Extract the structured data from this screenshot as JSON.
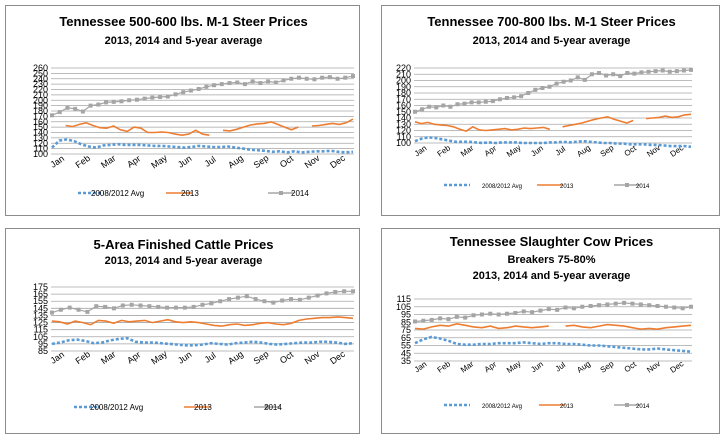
{
  "colors": {
    "avg": "#5b9bd5",
    "y2013": "#ed7d31",
    "y2014": "#a5a5a5",
    "grid": "#a6a6a6"
  },
  "chart_data": [
    {
      "type": "line",
      "title": "Tennessee 500-600 lbs. M-1 Steer Prices",
      "subtitle": "2013, 2014 and 5-year average",
      "xlabels": [
        "Jan",
        "Feb",
        "Mar",
        "Apr",
        "May",
        "Jun",
        "Jul",
        "Aug",
        "Sep",
        "Oct",
        "Nov",
        "Dec"
      ],
      "ylim": [
        100,
        260
      ],
      "yticks": [
        100,
        110,
        120,
        130,
        140,
        150,
        160,
        170,
        180,
        190,
        200,
        210,
        220,
        230,
        240,
        250,
        260
      ],
      "grid": true,
      "legend": "bottom",
      "series": [
        {
          "name": "2008/2012 Avg",
          "style": "dashed",
          "values": [
            112,
            125,
            127,
            124,
            118,
            114,
            112,
            116,
            117,
            118,
            117,
            117,
            117,
            116,
            115,
            115,
            114,
            113,
            112,
            113,
            115,
            114,
            113,
            113,
            114,
            112,
            110,
            108,
            107,
            106,
            104,
            105,
            103,
            105,
            103,
            104,
            105,
            105,
            106,
            104,
            103,
            104
          ]
        },
        {
          "name": "2013",
          "style": "solid",
          "values": [
            null,
            null,
            153,
            151,
            155,
            158,
            153,
            149,
            148,
            152,
            145,
            142,
            150,
            148,
            140,
            140,
            141,
            140,
            137,
            135,
            137,
            144,
            137,
            135,
            null,
            144,
            143,
            146,
            150,
            154,
            156,
            157,
            160,
            155,
            150,
            145,
            150,
            null,
            152,
            153,
            155,
            157,
            155,
            158,
            165
          ]
        },
        {
          "name": "2014",
          "style": "markers",
          "values": [
            172,
            178,
            186,
            184,
            179,
            190,
            192,
            196,
            197,
            198,
            200,
            201,
            203,
            205,
            206,
            207,
            211,
            215,
            218,
            221,
            225,
            228,
            230,
            232,
            233,
            230,
            235,
            232,
            235,
            233,
            237,
            240,
            242,
            240,
            239,
            242,
            243,
            240,
            242,
            245
          ]
        }
      ]
    },
    {
      "type": "line",
      "title": "Tennessee 700-800 lbs. M-1 Steer Prices",
      "subtitle": "2013, 2014 and 5-year average",
      "xlabels": [
        "Jan",
        "Feb",
        "Mar",
        "Apr",
        "May",
        "Jun",
        "Jul",
        "Aug",
        "Sep",
        "Oct",
        "Nov",
        "Dec"
      ],
      "ylim": [
        100,
        220
      ],
      "yticks": [
        100,
        110,
        120,
        130,
        140,
        150,
        160,
        170,
        180,
        190,
        200,
        210,
        220
      ],
      "grid": true,
      "legend": "bottom",
      "series": [
        {
          "name": "2008/2012 Avg",
          "style": "dashed",
          "values": [
            103,
            107,
            109,
            108,
            106,
            104,
            102,
            102,
            102,
            101,
            100,
            101,
            100,
            101,
            101,
            101,
            100,
            100,
            100,
            100,
            101,
            101,
            102,
            101,
            102,
            103,
            102,
            101,
            100,
            100,
            99,
            99,
            98,
            98,
            98,
            97,
            97,
            96,
            95,
            95,
            95,
            94
          ]
        },
        {
          "name": "2013",
          "style": "solid",
          "values": [
            134,
            131,
            133,
            130,
            129,
            128,
            126,
            122,
            119,
            126,
            121,
            120,
            121,
            122,
            123,
            121,
            122,
            124,
            123,
            124,
            125,
            122,
            null,
            126,
            128,
            130,
            132,
            135,
            138,
            140,
            142,
            138,
            135,
            132,
            136,
            null,
            139,
            140,
            141,
            143,
            141,
            142,
            145,
            146
          ]
        },
        {
          "name": "2014",
          "style": "markers",
          "values": [
            150,
            154,
            158,
            157,
            160,
            158,
            162,
            163,
            165,
            165,
            166,
            167,
            170,
            172,
            173,
            175,
            180,
            185,
            188,
            190,
            195,
            198,
            200,
            205,
            201,
            210,
            212,
            208,
            210,
            207,
            212,
            211,
            213,
            214,
            215,
            216,
            214,
            215,
            216,
            217
          ]
        }
      ]
    },
    {
      "type": "line",
      "title": "5-Area Finished Cattle Prices",
      "subtitle": "2013, 2014 and 5-year average",
      "xlabels": [
        "Jan",
        "Feb",
        "Mar",
        "Apr",
        "May",
        "Jun",
        "Jul",
        "Aug",
        "Sep",
        "Oct",
        "Nov",
        "Dec"
      ],
      "ylim": [
        85,
        175
      ],
      "yticks": [
        85,
        95,
        105,
        115,
        125,
        135,
        145,
        155,
        165,
        175
      ],
      "grid": true,
      "legend": "bottom",
      "series": [
        {
          "name": "2008/2012 Avg",
          "style": "dashed",
          "values": [
            95,
            97,
            100,
            101,
            99,
            96,
            97,
            100,
            102,
            103,
            98,
            97,
            97,
            96,
            95,
            94,
            93,
            93,
            94,
            96,
            95,
            94,
            96,
            97,
            98,
            97,
            95,
            94,
            95,
            96,
            97,
            97,
            98,
            98,
            97,
            95,
            96
          ]
        },
        {
          "name": "2013",
          "style": "solid",
          "values": [
            127,
            126,
            123,
            127,
            125,
            122,
            128,
            127,
            124,
            128,
            126,
            127,
            128,
            125,
            127,
            129,
            126,
            125,
            126,
            125,
            123,
            121,
            120,
            122,
            123,
            121,
            122,
            124,
            125,
            123,
            122,
            124,
            128,
            130,
            131,
            132,
            132,
            133,
            132,
            131
          ]
        },
        {
          "name": "2014",
          "style": "markers",
          "values": [
            139,
            143,
            146,
            143,
            140,
            148,
            147,
            145,
            149,
            150,
            149,
            148,
            147,
            146,
            146,
            146,
            147,
            150,
            152,
            155,
            158,
            160,
            162,
            158,
            155,
            153,
            156,
            158,
            157,
            160,
            163,
            166,
            168,
            169,
            169
          ]
        }
      ]
    },
    {
      "type": "line",
      "title": "Tennessee Slaughter Cow Prices",
      "subtitle": "Breakers 75-80%",
      "subtitle2": "2013, 2014 and 5-year average",
      "xlabels": [
        "Jan",
        "Feb",
        "Mar",
        "Apr",
        "May",
        "Jun",
        "Jul",
        "Aug",
        "Sep",
        "Oct",
        "Nov",
        "Dec"
      ],
      "ylim": [
        35,
        115
      ],
      "yticks": [
        35,
        45,
        55,
        65,
        75,
        85,
        95,
        105,
        115
      ],
      "grid": true,
      "legend": "bottom",
      "series": [
        {
          "name": "2008/2012 Avg",
          "style": "dashed",
          "values": [
            58,
            63,
            66,
            64,
            61,
            57,
            56,
            56,
            57,
            57,
            58,
            58,
            58,
            59,
            58,
            57,
            58,
            58,
            57,
            57,
            56,
            55,
            55,
            54,
            53,
            52,
            51,
            50,
            50,
            51,
            50,
            49,
            48,
            47
          ]
        },
        {
          "name": "2013",
          "style": "solid",
          "values": [
            77,
            76,
            79,
            81,
            80,
            83,
            81,
            79,
            78,
            80,
            77,
            78,
            80,
            79,
            78,
            79,
            80,
            null,
            80,
            81,
            79,
            78,
            80,
            82,
            81,
            80,
            78,
            76,
            77,
            76,
            78,
            79,
            80,
            81
          ]
        },
        {
          "name": "2014",
          "style": "markers",
          "values": [
            86,
            87,
            88,
            90,
            89,
            92,
            91,
            94,
            95,
            96,
            95,
            96,
            97,
            99,
            98,
            100,
            102,
            101,
            104,
            103,
            105,
            106,
            107,
            108,
            109,
            110,
            109,
            108,
            107,
            106,
            105,
            104,
            103,
            105
          ]
        }
      ]
    }
  ]
}
